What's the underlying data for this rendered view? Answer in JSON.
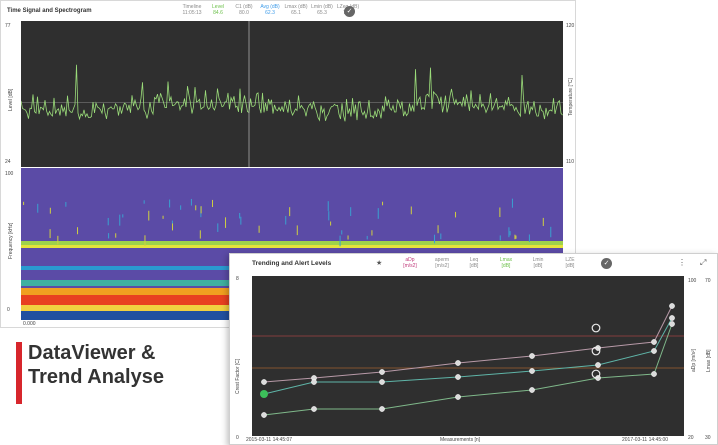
{
  "panel1": {
    "title": "Time Signal and Spectrogram",
    "header_cols": [
      {
        "label": "Timeline",
        "value": "11:05:13",
        "color": "#8a8a8a"
      },
      {
        "label": "Level",
        "value": "84.6",
        "color": "#6cc04a"
      },
      {
        "label": "C1 (dB)",
        "value": "80.0",
        "color": "#8a8a8a"
      },
      {
        "label": "Avg (dB)",
        "value": "62.3",
        "color": "#3d9be9"
      },
      {
        "label": "Lmax (dB)",
        "value": "65.1",
        "color": "#8a8a8a"
      },
      {
        "label": "Lmin (dB)",
        "value": "65.3",
        "color": "#8a8a8a"
      },
      {
        "label": "LZeq (dB)",
        "value": "71.6",
        "color": "#8a8a8a"
      }
    ],
    "check_icon": "check-circle-icon",
    "time_plot": {
      "left_top": "77",
      "left_bottom": "24",
      "right_top": "120",
      "right_bottom": "110",
      "left_axis": "Level [dB]",
      "right_axis": "Temperature [°C]"
    },
    "spectrogram": {
      "left_top": "100",
      "left_bottom": "0",
      "left_axis": "Frequency [kHz]",
      "x_start": "0.000"
    }
  },
  "brand": {
    "line1": "DataViewer &",
    "line2": "Trend Analyse",
    "accent": "#d7262c"
  },
  "panel2": {
    "title": "Trending and Alert Levels",
    "icon_star": "star-icon",
    "cols": [
      {
        "label": "aDp",
        "unit": "[m/s2]",
        "color": "#c0397a"
      },
      {
        "label": "aperm",
        "unit": "[m/s2]",
        "color": "#8a8a8a"
      },
      {
        "label": "Leq",
        "unit": "[dB]",
        "color": "#8a8a8a"
      },
      {
        "label": "Lmax",
        "unit": "[dB]",
        "color": "#6cc04a"
      },
      {
        "label": "Lmin",
        "unit": "[dB]",
        "color": "#8a8a8a"
      },
      {
        "label": "LZE",
        "unit": "[dB]",
        "color": "#8a8a8a"
      }
    ],
    "left_axis": "Crest Factor [C]",
    "right_axis_1": "aDp [m/s²]",
    "right_axis_2": "Lmax [dB]",
    "left_top": "8",
    "left_bottom": "0",
    "right1_top": "100",
    "right1_bottom": "20",
    "right2_top": "70",
    "right2_bottom": "30",
    "x_start": "2015-03-11 14:45:07",
    "x_end": "2017-03-11 14:45:00",
    "x_axis": "Measurements [n]",
    "series": [
      {
        "name": "aDp",
        "color": "#b07aa0"
      },
      {
        "name": "Lmax",
        "color": "#4aa9a0"
      },
      {
        "name": "Lmin",
        "color": "#77b080"
      }
    ],
    "alert_colors": [
      "#c05050",
      "#c07030"
    ]
  }
}
